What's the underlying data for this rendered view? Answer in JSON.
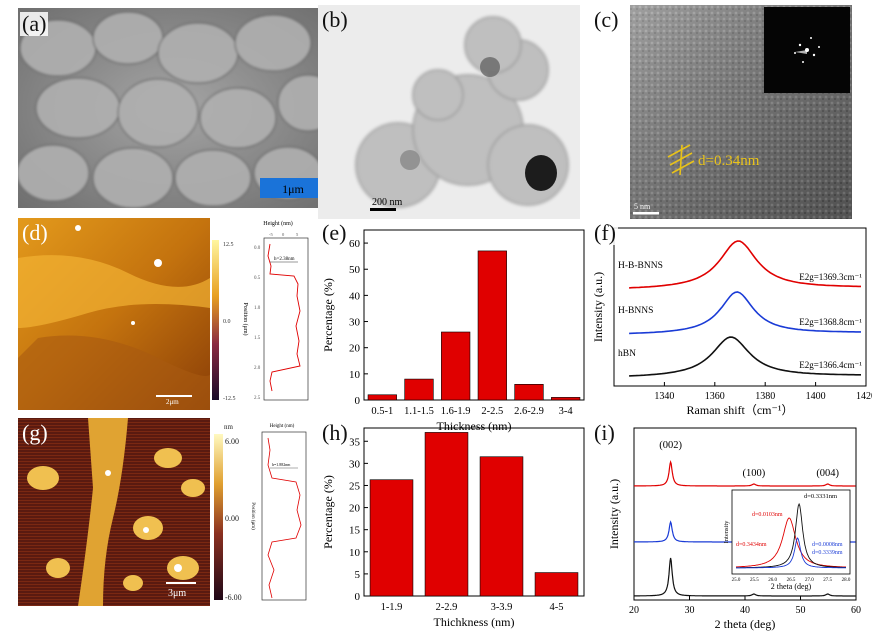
{
  "labels": {
    "a": "(a)",
    "b": "(b)",
    "c": "(c)",
    "d": "(d)",
    "e": "(e)",
    "f": "(f)",
    "g": "(g)",
    "h": "(h)",
    "i": "(i)"
  },
  "a": {
    "scale": "1μm",
    "colors": {
      "bg": "#8c8c8c",
      "bar": "#1a73d9"
    }
  },
  "b": {
    "scale": "200 nm"
  },
  "c": {
    "scale": "5 nm",
    "d_spacing": "d=0.34nm",
    "color": "#e8c21a"
  },
  "d": {
    "scale": "2μm",
    "cbar_ticks": [
      "12.5",
      "0.0",
      "-12.5"
    ],
    "profile_title": "Height (nm)",
    "profile_ylabel": "Position (μm)",
    "profile_xticks": [
      "-5",
      "0",
      "5"
    ],
    "profile_yticks": [
      "0.0",
      "0.5",
      "1.0",
      "1.5",
      "2.0",
      "2.5"
    ],
    "annotation": "h=2.38nm"
  },
  "g": {
    "scale": "3μm",
    "cbar_unit": "nm",
    "cbar_ticks": [
      "6.00",
      "0.00",
      "-6.00"
    ],
    "profile_title": "Height (nm)",
    "profile_ylabel": "Position (μm)",
    "annotation": "h=1.882nm"
  },
  "e": {
    "chart_data": {
      "type": "bar",
      "categories": [
        "0.5-1",
        "1.1-1.5",
        "1.6-1.9",
        "2-2.5",
        "2.6-2.9",
        "3-4"
      ],
      "values": [
        2,
        8,
        26,
        57,
        6,
        1
      ],
      "xlabel": "Thickness (nm)",
      "ylabel": "Percentage (%)",
      "ylim": [
        0,
        65
      ],
      "yticks": [
        0,
        10,
        20,
        30,
        40,
        50,
        60
      ],
      "bar_color": "#e00000"
    }
  },
  "h": {
    "chart_data": {
      "type": "bar",
      "categories": [
        "1-1.9",
        "2-2.9",
        "3-3.9",
        "4-5"
      ],
      "values": [
        26.3,
        37,
        31.5,
        5.3
      ],
      "xlabel": "Thichkness (nm)",
      "ylabel": "Percentage (%)",
      "ylim": [
        0,
        38
      ],
      "yticks": [
        0,
        5,
        10,
        15,
        20,
        25,
        30,
        35
      ],
      "bar_color": "#e00000"
    }
  },
  "f": {
    "chart_data": {
      "type": "line",
      "xlabel": "Raman shift（cm⁻¹）",
      "ylabel": "Intensity (a.u.)",
      "xlim": [
        1320,
        1420
      ],
      "xticks": [
        1340,
        1360,
        1380,
        1400,
        1420
      ],
      "series": [
        {
          "name": "H-B-BNNS",
          "peak": 1369.3,
          "label": "E2g=1369.3cm⁻¹",
          "color": "#e00000"
        },
        {
          "name": "H-BNNS",
          "peak": 1368.8,
          "label": "E2g=1368.8cm⁻¹",
          "color": "#1a3bd6"
        },
        {
          "name": "hBN",
          "peak": 1366.4,
          "label": "E2g=1366.4cm⁻¹",
          "color": "#111111"
        }
      ]
    }
  },
  "i": {
    "chart_data": {
      "type": "line",
      "xlabel": "2 theta (deg)",
      "ylabel": "Intensity (a.u.)",
      "xlim": [
        20,
        60
      ],
      "xticks": [
        20,
        30,
        40,
        50,
        60
      ],
      "peak_labels": [
        "(002)",
        "(100)",
        "(004)"
      ],
      "series": [
        {
          "name": "red",
          "color": "#e00000"
        },
        {
          "name": "blue",
          "color": "#1a3bd6"
        },
        {
          "name": "black",
          "color": "#111111"
        }
      ],
      "inset": {
        "xlabel": "2 theta (deg)",
        "ylabel": "Intensity",
        "xticks": [
          "25.0",
          "25.5",
          "26.0",
          "26.5",
          "27.0",
          "27.5",
          "28.0"
        ],
        "annotations": [
          "d=0.3331nm",
          "d=0.0103nm",
          "d=0.0008nm",
          "d=0.3434nm",
          "d=0.3339nm"
        ]
      }
    }
  }
}
